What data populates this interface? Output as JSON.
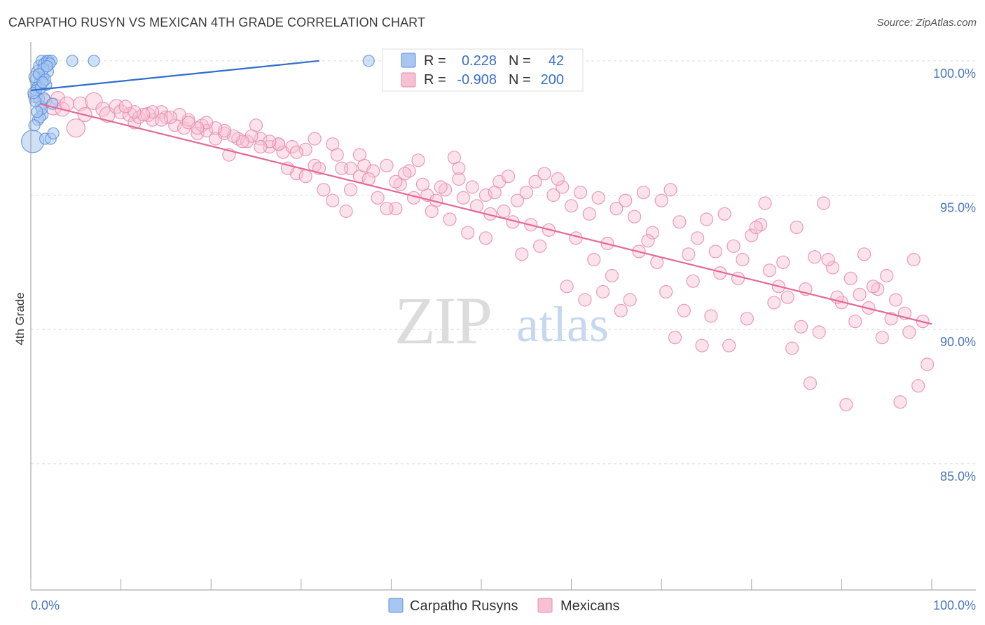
{
  "title": "CARPATHO RUSYN VS MEXICAN 4TH GRADE CORRELATION CHART",
  "source": "Source: ZipAtlas.com",
  "watermark": {
    "zip": "ZIP",
    "atlas": "atlas"
  },
  "colors": {
    "blue": "#5b8fdc",
    "blue_fill": "#a9c6f0",
    "blue_line": "#2f6fcb",
    "pink": "#e98aa8",
    "pink_fill": "#f6c1d2",
    "pink_line": "#e26a93",
    "tick_text": "#4a78c0",
    "grid": "#dcdcdc"
  },
  "legend_box": {
    "rows": [
      {
        "r_label": "R =",
        "r_value": "0.228",
        "n_label": "N =",
        "n_value": "42",
        "color": "blue"
      },
      {
        "r_label": "R =",
        "r_value": "-0.908",
        "n_label": "N =",
        "n_value": "200",
        "color": "pink"
      }
    ]
  },
  "chart_data": {
    "type": "scatter",
    "ylabel": "4th Grade",
    "xlim": [
      0,
      100
    ],
    "ylim": [
      80.3,
      100.7
    ],
    "x_tick_labels": [
      "0.0%",
      "100.0%"
    ],
    "y_ticks": [
      100,
      95,
      90,
      85
    ],
    "y_tick_labels": [
      "100.0%",
      "95.0%",
      "90.0%",
      "85.0%"
    ],
    "grid": "horizontal dashed",
    "legend": [
      {
        "name": "Carpatho Rusyns",
        "color": "blue"
      },
      {
        "name": "Mexicans",
        "color": "pink"
      }
    ],
    "series": [
      {
        "name": "Carpatho Rusyns",
        "color": "blue",
        "trend": {
          "x": [
            0,
            32
          ],
          "y": [
            98.9,
            100.0
          ]
        },
        "points": [
          [
            0.2,
            97.0,
            16
          ],
          [
            0.5,
            98.7,
            10
          ],
          [
            0.6,
            99.3,
            9
          ],
          [
            0.8,
            99.6,
            9
          ],
          [
            1.0,
            99.8,
            9
          ],
          [
            1.2,
            100.0,
            8
          ],
          [
            1.5,
            99.9,
            8
          ],
          [
            1.8,
            100.0,
            8
          ],
          [
            2.0,
            100.0,
            8
          ],
          [
            2.3,
            100.0,
            8
          ],
          [
            1.0,
            99.2,
            8
          ],
          [
            1.4,
            99.4,
            8
          ],
          [
            0.7,
            99.0,
            8
          ],
          [
            0.9,
            98.6,
            8
          ],
          [
            1.1,
            98.3,
            8
          ],
          [
            1.3,
            98.0,
            8
          ],
          [
            0.8,
            97.8,
            8
          ],
          [
            1.6,
            97.1,
            8
          ],
          [
            2.2,
            97.1,
            8
          ],
          [
            2.5,
            97.3,
            8
          ],
          [
            0.4,
            99.4,
            8
          ],
          [
            1.7,
            99.1,
            8
          ],
          [
            1.9,
            99.6,
            8
          ],
          [
            0.6,
            98.9,
            8
          ],
          [
            1.2,
            98.2,
            8
          ],
          [
            4.6,
            100.0,
            8
          ],
          [
            7.0,
            100.0,
            8
          ],
          [
            37.5,
            100.0,
            8
          ],
          [
            1.5,
            98.6,
            8
          ],
          [
            1.0,
            97.9,
            8
          ],
          [
            2.1,
            99.9,
            8
          ],
          [
            0.5,
            98.5,
            8
          ],
          [
            1.4,
            99.7,
            8
          ],
          [
            0.9,
            99.5,
            8
          ],
          [
            1.8,
            99.8,
            8
          ],
          [
            0.3,
            98.8,
            8
          ],
          [
            1.1,
            99.0,
            8
          ],
          [
            2.4,
            98.4,
            8
          ],
          [
            0.7,
            98.1,
            8
          ],
          [
            1.6,
            99.3,
            8
          ],
          [
            0.4,
            97.6,
            8
          ],
          [
            1.3,
            99.2,
            8
          ]
        ]
      },
      {
        "name": "Mexicans",
        "color": "pink",
        "trend": {
          "x": [
            1,
            100
          ],
          "y": [
            98.4,
            90.2
          ]
        },
        "points": [
          [
            1.5,
            98.5,
            10
          ],
          [
            2.5,
            98.3,
            12
          ],
          [
            3.0,
            98.6,
            10
          ],
          [
            3.5,
            98.2,
            10
          ],
          [
            4.0,
            98.4,
            10
          ],
          [
            5.0,
            97.5,
            13
          ],
          [
            5.5,
            98.4,
            10
          ],
          [
            6.0,
            98.0,
            10
          ],
          [
            7.0,
            98.5,
            12
          ],
          [
            8.0,
            98.2,
            10
          ],
          [
            8.5,
            98.0,
            11
          ],
          [
            9.5,
            98.3,
            10
          ],
          [
            10.0,
            98.1,
            10
          ],
          [
            11.0,
            98.0,
            10
          ],
          [
            11.5,
            97.7,
            9
          ],
          [
            12.0,
            97.9,
            9
          ],
          [
            13.0,
            98.0,
            10
          ],
          [
            13.5,
            97.8,
            9
          ],
          [
            14.5,
            98.1,
            9
          ],
          [
            15.0,
            97.9,
            9
          ],
          [
            16.0,
            97.6,
            9
          ],
          [
            17.0,
            97.5,
            9
          ],
          [
            17.5,
            97.8,
            9
          ],
          [
            18.5,
            97.3,
            9
          ],
          [
            19.0,
            97.6,
            9
          ],
          [
            19.5,
            97.4,
            9
          ],
          [
            20.5,
            97.1,
            9
          ],
          [
            21.5,
            97.3,
            9
          ],
          [
            22.0,
            96.5,
            9
          ],
          [
            23.0,
            97.1,
            9
          ],
          [
            24.0,
            97.0,
            9
          ],
          [
            25.0,
            97.6,
            9
          ],
          [
            25.5,
            97.1,
            9
          ],
          [
            26.5,
            96.8,
            9
          ],
          [
            27.5,
            96.9,
            9
          ],
          [
            28.0,
            96.6,
            9
          ],
          [
            29.0,
            96.8,
            9
          ],
          [
            29.5,
            95.8,
            9
          ],
          [
            30.5,
            96.7,
            9
          ],
          [
            31.5,
            96.1,
            9
          ],
          [
            32.0,
            96.0,
            9
          ],
          [
            33.5,
            96.9,
            9
          ],
          [
            34.0,
            96.5,
            9
          ],
          [
            35.0,
            94.4,
            9
          ],
          [
            35.5,
            96.0,
            9
          ],
          [
            36.5,
            95.7,
            9
          ],
          [
            37.0,
            96.1,
            9
          ],
          [
            38.0,
            95.9,
            9
          ],
          [
            39.5,
            96.1,
            9
          ],
          [
            40.5,
            94.5,
            9
          ],
          [
            41.0,
            95.4,
            9
          ],
          [
            42.0,
            95.9,
            9
          ],
          [
            43.0,
            96.3,
            9
          ],
          [
            44.0,
            95.0,
            9
          ],
          [
            45.0,
            94.8,
            9
          ],
          [
            46.0,
            95.2,
            9
          ],
          [
            47.0,
            96.4,
            9
          ],
          [
            47.5,
            95.6,
            9
          ],
          [
            48.0,
            94.9,
            9
          ],
          [
            49.0,
            95.3,
            9
          ],
          [
            50.5,
            95.0,
            9
          ],
          [
            51.0,
            94.3,
            9
          ],
          [
            52.0,
            95.5,
            9
          ],
          [
            53.0,
            95.7,
            9
          ],
          [
            54.0,
            94.8,
            9
          ],
          [
            55.0,
            95.1,
            9
          ],
          [
            56.0,
            95.5,
            9
          ],
          [
            57.0,
            95.8,
            9
          ],
          [
            58.0,
            95.0,
            9
          ],
          [
            59.0,
            95.3,
            9
          ],
          [
            60.0,
            94.6,
            9
          ],
          [
            61.0,
            95.1,
            9
          ],
          [
            62.0,
            94.3,
            9
          ],
          [
            63.0,
            94.9,
            9
          ],
          [
            64.0,
            93.2,
            9
          ],
          [
            65.0,
            94.5,
            9
          ],
          [
            66.0,
            94.8,
            9
          ],
          [
            67.0,
            94.2,
            9
          ],
          [
            68.0,
            95.1,
            9
          ],
          [
            69.0,
            93.6,
            9
          ],
          [
            70.0,
            94.8,
            9
          ],
          [
            71.0,
            95.2,
            9
          ],
          [
            72.0,
            94.0,
            9
          ],
          [
            73.0,
            92.8,
            9
          ],
          [
            74.0,
            93.4,
            9
          ],
          [
            75.0,
            94.1,
            9
          ],
          [
            76.0,
            92.9,
            9
          ],
          [
            77.0,
            94.3,
            9
          ],
          [
            78.0,
            93.1,
            9
          ],
          [
            79.0,
            92.6,
            9
          ],
          [
            80.0,
            93.5,
            9
          ],
          [
            81.0,
            93.9,
            9
          ],
          [
            82.0,
            92.2,
            9
          ],
          [
            83.0,
            91.6,
            9
          ],
          [
            84.0,
            91.2,
            9
          ],
          [
            85.0,
            93.8,
            9
          ],
          [
            86.0,
            91.5,
            9
          ],
          [
            87.0,
            92.7,
            9
          ],
          [
            88.0,
            94.7,
            9
          ],
          [
            89.0,
            92.3,
            9
          ],
          [
            90.0,
            91.0,
            9
          ],
          [
            91.0,
            91.9,
            9
          ],
          [
            92.0,
            91.3,
            9
          ],
          [
            93.0,
            90.8,
            9
          ],
          [
            94.0,
            91.5,
            9
          ],
          [
            95.0,
            92.0,
            9
          ],
          [
            96.0,
            91.1,
            9
          ],
          [
            97.0,
            90.6,
            9
          ],
          [
            98.0,
            92.6,
            9
          ],
          [
            99.0,
            90.3,
            9
          ],
          [
            99.5,
            88.7,
            9
          ],
          [
            98.5,
            87.9,
            9
          ],
          [
            97.5,
            89.9,
            9
          ],
          [
            96.5,
            87.3,
            9
          ],
          [
            95.5,
            90.4,
            9
          ],
          [
            94.5,
            89.7,
            9
          ],
          [
            93.5,
            91.6,
            9
          ],
          [
            92.5,
            92.8,
            9
          ],
          [
            91.5,
            90.3,
            9
          ],
          [
            90.5,
            87.2,
            9
          ],
          [
            89.5,
            91.2,
            9
          ],
          [
            88.5,
            92.6,
            9
          ],
          [
            87.5,
            89.9,
            9
          ],
          [
            86.5,
            88.0,
            9
          ],
          [
            85.5,
            90.1,
            9
          ],
          [
            84.5,
            89.3,
            9
          ],
          [
            83.5,
            92.5,
            9
          ],
          [
            82.5,
            91.0,
            9
          ],
          [
            81.5,
            94.7,
            9
          ],
          [
            80.5,
            93.8,
            9
          ],
          [
            79.5,
            90.4,
            9
          ],
          [
            78.5,
            91.9,
            9
          ],
          [
            77.5,
            89.4,
            9
          ],
          [
            76.5,
            92.1,
            9
          ],
          [
            75.5,
            90.5,
            9
          ],
          [
            74.5,
            89.4,
            9
          ],
          [
            73.5,
            91.8,
            9
          ],
          [
            72.5,
            90.7,
            9
          ],
          [
            71.5,
            89.7,
            9
          ],
          [
            70.5,
            91.4,
            9
          ],
          [
            69.5,
            92.5,
            9
          ],
          [
            68.5,
            93.3,
            9
          ],
          [
            67.5,
            92.9,
            9
          ],
          [
            66.5,
            91.1,
            9
          ],
          [
            65.5,
            90.7,
            9
          ],
          [
            64.5,
            92.0,
            9
          ],
          [
            63.5,
            91.4,
            9
          ],
          [
            62.5,
            92.6,
            9
          ],
          [
            61.5,
            91.1,
            9
          ],
          [
            60.5,
            93.4,
            9
          ],
          [
            59.5,
            91.6,
            9
          ],
          [
            58.5,
            95.6,
            9
          ],
          [
            57.5,
            93.7,
            9
          ],
          [
            56.5,
            93.1,
            9
          ],
          [
            55.5,
            93.9,
            9
          ],
          [
            54.5,
            92.8,
            9
          ],
          [
            53.5,
            94.0,
            9
          ],
          [
            52.5,
            94.4,
            9
          ],
          [
            51.5,
            95.1,
            9
          ],
          [
            50.5,
            93.4,
            9
          ],
          [
            49.5,
            94.6,
            9
          ],
          [
            48.5,
            93.6,
            9
          ],
          [
            47.5,
            96.0,
            9
          ],
          [
            46.5,
            94.1,
            9
          ],
          [
            45.5,
            95.3,
            9
          ],
          [
            44.5,
            94.4,
            9
          ],
          [
            43.5,
            95.4,
            9
          ],
          [
            42.5,
            94.9,
            9
          ],
          [
            41.5,
            95.8,
            9
          ],
          [
            40.5,
            95.5,
            9
          ],
          [
            39.5,
            94.5,
            9
          ],
          [
            38.5,
            94.9,
            9
          ],
          [
            37.5,
            95.6,
            9
          ],
          [
            36.5,
            96.5,
            9
          ],
          [
            35.5,
            95.2,
            9
          ],
          [
            34.5,
            96.0,
            9
          ],
          [
            33.5,
            94.8,
            9
          ],
          [
            32.5,
            95.2,
            9
          ],
          [
            31.5,
            97.1,
            9
          ],
          [
            30.5,
            95.7,
            9
          ],
          [
            29.5,
            96.6,
            9
          ],
          [
            28.5,
            96.0,
            9
          ],
          [
            27.5,
            96.9,
            9
          ],
          [
            26.5,
            97.0,
            9
          ],
          [
            25.5,
            96.8,
            9
          ],
          [
            24.5,
            97.2,
            9
          ],
          [
            23.5,
            97.0,
            9
          ],
          [
            22.5,
            97.2,
            9
          ],
          [
            21.5,
            97.4,
            9
          ],
          [
            20.5,
            97.5,
            9
          ],
          [
            19.5,
            97.7,
            9
          ],
          [
            18.5,
            97.5,
            9
          ],
          [
            17.5,
            97.7,
            9
          ],
          [
            16.5,
            98.0,
            9
          ],
          [
            15.5,
            97.9,
            9
          ],
          [
            14.5,
            97.8,
            9
          ],
          [
            13.5,
            98.1,
            9
          ],
          [
            12.5,
            98.0,
            9
          ],
          [
            11.5,
            98.1,
            9
          ],
          [
            10.5,
            98.3,
            9
          ]
        ]
      }
    ]
  }
}
